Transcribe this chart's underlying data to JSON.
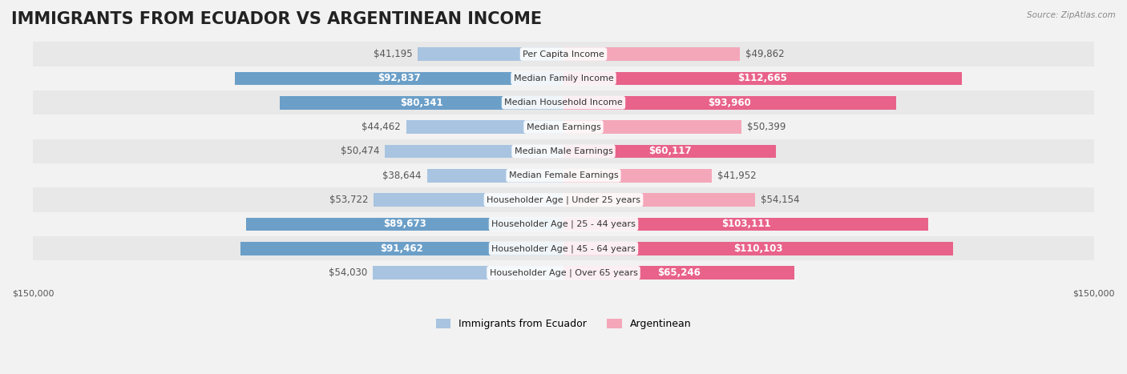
{
  "title": "IMMIGRANTS FROM ECUADOR VS ARGENTINEAN INCOME",
  "source": "Source: ZipAtlas.com",
  "categories": [
    "Per Capita Income",
    "Median Family Income",
    "Median Household Income",
    "Median Earnings",
    "Median Male Earnings",
    "Median Female Earnings",
    "Householder Age | Under 25 years",
    "Householder Age | 25 - 44 years",
    "Householder Age | 45 - 64 years",
    "Householder Age | Over 65 years"
  ],
  "ecuador_values": [
    41195,
    92837,
    80341,
    44462,
    50474,
    38644,
    53722,
    89673,
    91462,
    54030
  ],
  "argentina_values": [
    49862,
    112665,
    93960,
    50399,
    60117,
    41952,
    54154,
    103111,
    110103,
    65246
  ],
  "ecuador_labels": [
    "$41,195",
    "$92,837",
    "$80,341",
    "$44,462",
    "$50,474",
    "$38,644",
    "$53,722",
    "$89,673",
    "$91,462",
    "$54,030"
  ],
  "argentina_labels": [
    "$49,862",
    "$112,665",
    "$93,960",
    "$50,399",
    "$60,117",
    "$41,952",
    "$54,154",
    "$103,111",
    "$110,103",
    "$65,246"
  ],
  "ecuador_color_light": "#a8c4e0",
  "ecuador_color_dark": "#6b9fc8",
  "argentina_color_light": "#f4a7b9",
  "argentina_color_dark": "#e8628a",
  "max_value": 150000,
  "bg_color": "#f2f2f2",
  "row_bg_even": "#e8e8e8",
  "row_bg_odd": "#f2f2f2",
  "label_color_inside": "#ffffff",
  "label_color_outside": "#555555",
  "title_fontsize": 15,
  "label_fontsize": 8.5,
  "category_fontsize": 8.0,
  "legend_fontsize": 9,
  "axis_label_fontsize": 8,
  "ecuador_inside_threshold": 60000,
  "argentina_inside_threshold": 60000
}
